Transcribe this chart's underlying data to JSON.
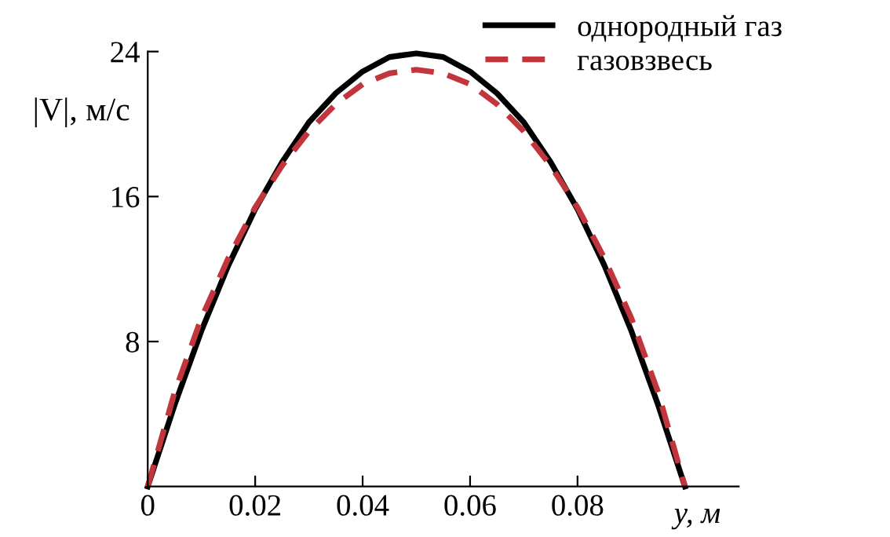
{
  "chart_data": {
    "type": "line",
    "xlabel": "y, м",
    "ylabel": "|V|, м/с",
    "x": [
      0,
      0.005,
      0.01,
      0.015,
      0.02,
      0.025,
      0.03,
      0.035,
      0.04,
      0.045,
      0.05,
      0.055,
      0.06,
      0.065,
      0.07,
      0.075,
      0.08,
      0.085,
      0.09,
      0.095,
      0.1
    ],
    "series": [
      {
        "name": "однородный газ",
        "color": "#000000",
        "line_style": "solid",
        "values": [
          0,
          4.5,
          8.6,
          12.2,
          15.3,
          17.9,
          20.1,
          21.7,
          22.9,
          23.7,
          23.9,
          23.7,
          22.9,
          21.7,
          20.1,
          17.9,
          15.3,
          12.2,
          8.6,
          4.5,
          0
        ]
      },
      {
        "name": "газовзвесь",
        "color": "#c0363c",
        "line_style": "dashed",
        "values": [
          0,
          5.2,
          9.3,
          12.6,
          15.4,
          17.7,
          19.6,
          21.1,
          22.2,
          22.8,
          23.0,
          22.8,
          22.2,
          21.1,
          19.6,
          17.7,
          15.4,
          12.6,
          9.3,
          5.2,
          0
        ]
      }
    ],
    "xlim": [
      0,
      0.11
    ],
    "ylim": [
      0,
      24
    ],
    "xticks": [
      0,
      0.02,
      0.04,
      0.06,
      0.08
    ],
    "yticks": [
      8,
      16,
      24
    ],
    "grid": false,
    "legend": "top right",
    "marker": "none"
  }
}
